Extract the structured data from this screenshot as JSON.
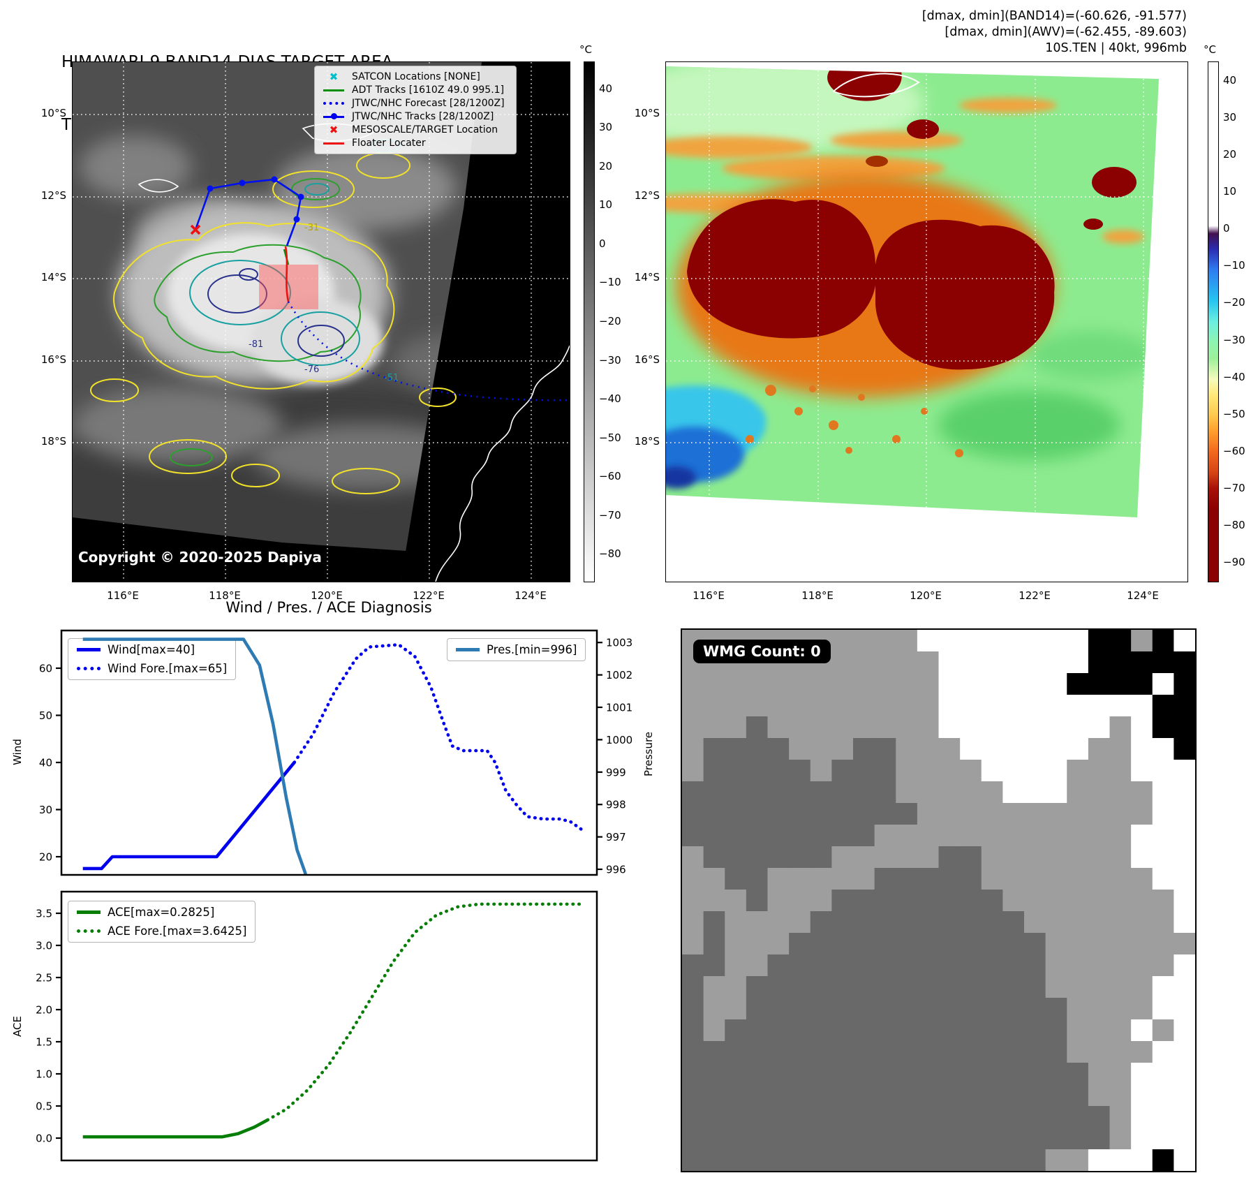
{
  "panel_band14": {
    "title": "HIMAWARI-9 BAND14-DIAS TARGET AREA",
    "time_label": "Time: 2025/12/28 17:30:00Z",
    "copyright": "Copyright © 2020-2025 Dapiya",
    "legend": [
      {
        "label": "SATCON Locations [NONE]",
        "marker": "x",
        "color": "#00bfca"
      },
      {
        "label": "ADT Tracks [1610Z 49.0 995.1]",
        "marker": "line",
        "color": "#0a8f0a"
      },
      {
        "label": "JTWC/NHC Forecast [28/1200Z]",
        "marker": "dotted",
        "color": "#0000ee"
      },
      {
        "label": "JTWC/NHC Tracks [28/1200Z]",
        "marker": "linedot",
        "color": "#0000ee"
      },
      {
        "label": "MESOSCALE/TARGET Location",
        "marker": "x",
        "color": "#ee1111"
      },
      {
        "label": "Floater Locater",
        "marker": "line",
        "color": "#ee1111"
      }
    ],
    "x_ticks": [
      "116°E",
      "118°E",
      "120°E",
      "122°E",
      "124°E"
    ],
    "y_ticks": [
      "10°S",
      "12°S",
      "14°S",
      "16°S",
      "18°S"
    ],
    "colorbar": {
      "unit": "°C",
      "ticks": [
        {
          "v": 40,
          "t": "40"
        },
        {
          "v": 30,
          "t": "30"
        },
        {
          "v": 20,
          "t": "20"
        },
        {
          "v": 10,
          "t": "10"
        },
        {
          "v": 0,
          "t": "0"
        },
        {
          "v": -10,
          "t": "−10"
        },
        {
          "v": -20,
          "t": "−20"
        },
        {
          "v": -30,
          "t": "−30"
        },
        {
          "v": -40,
          "t": "−40"
        },
        {
          "v": -50,
          "t": "−50"
        },
        {
          "v": -60,
          "t": "−60"
        },
        {
          "v": -70,
          "t": "−70"
        },
        {
          "v": -80,
          "t": "−80"
        }
      ]
    },
    "contour_labels": {
      "c42": "42",
      "c31": "-31",
      "c81": "-81",
      "c76": "-76",
      "c51": "-51"
    }
  },
  "panel_awv": {
    "info_line1": "[dmax, dmin](BAND14)=(-60.626, -91.577)",
    "info_line2": "[dmax, dmin](AWV)=(-62.455, -89.603)",
    "info_line3": "10S.TEN | 40kt, 996mb",
    "x_ticks": [
      "116°E",
      "118°E",
      "120°E",
      "122°E",
      "124°E"
    ],
    "y_ticks": [
      "10°S",
      "12°S",
      "14°S",
      "16°S",
      "18°S"
    ],
    "colorbar": {
      "unit": "°C",
      "ticks": [
        {
          "v": 40,
          "t": "40"
        },
        {
          "v": 30,
          "t": "30"
        },
        {
          "v": 20,
          "t": "20"
        },
        {
          "v": 10,
          "t": "10"
        },
        {
          "v": 0,
          "t": "0"
        },
        {
          "v": -10,
          "t": "−10"
        },
        {
          "v": -20,
          "t": "−20"
        },
        {
          "v": -30,
          "t": "−30"
        },
        {
          "v": -40,
          "t": "−40"
        },
        {
          "v": -50,
          "t": "−50"
        },
        {
          "v": -60,
          "t": "−60"
        },
        {
          "v": -70,
          "t": "−70"
        },
        {
          "v": -80,
          "t": "−80"
        },
        {
          "v": -90,
          "t": "−90"
        }
      ]
    }
  },
  "diagnosis": {
    "title": "Wind / Pres. / ACE Diagnosis",
    "ylabel_wind": "Wind",
    "ylabel_pressure": "Pressure",
    "ylabel_ace": "ACE"
  },
  "chart_data": [
    {
      "type": "line",
      "title": "Wind / Pres. / ACE Diagnosis",
      "ylabel": "Wind",
      "y2label": "Pressure",
      "ylim": [
        16,
        68
      ],
      "y2lim": [
        995.8,
        1003.3
      ],
      "grid": false,
      "legend_position": "upper-left and upper-right",
      "y_ticks": [
        {
          "v": 20,
          "t": "20"
        },
        {
          "v": 30,
          "t": "30"
        },
        {
          "v": 40,
          "t": "40"
        },
        {
          "v": 50,
          "t": "50"
        },
        {
          "v": 60,
          "t": "60"
        }
      ],
      "y2_ticks": [
        {
          "v": 996,
          "t": "996"
        },
        {
          "v": 997,
          "t": "997"
        },
        {
          "v": 998,
          "t": "998"
        },
        {
          "v": 999,
          "t": "999"
        },
        {
          "v": 1000,
          "t": "1000"
        },
        {
          "v": 1001,
          "t": "1001"
        },
        {
          "v": 1002,
          "t": "1002"
        },
        {
          "v": 1003,
          "t": "1003"
        }
      ],
      "series": [
        {
          "name": "Wind[max=40]",
          "axis": "y",
          "style": "solid",
          "color": "#0000ee",
          "points": [
            [
              4,
              17.5
            ],
            [
              7.5,
              17.5
            ],
            [
              9.5,
              20
            ],
            [
              29,
              20
            ],
            [
              43.5,
              40
            ]
          ]
        },
        {
          "name": "Wind Fore.[max=65]",
          "axis": "y",
          "style": "dotted",
          "color": "#0000ee",
          "points": [
            [
              43.5,
              40
            ],
            [
              47,
              46
            ],
            [
              51,
              55
            ],
            [
              55,
              62
            ],
            [
              57.5,
              64.5
            ],
            [
              63,
              65
            ],
            [
              66,
              62.5
            ],
            [
              69,
              56
            ],
            [
              71.5,
              48
            ],
            [
              73,
              43.5
            ],
            [
              75,
              42.5
            ],
            [
              79.5,
              42.5
            ],
            [
              81,
              40
            ],
            [
              83,
              34
            ],
            [
              85,
              31
            ],
            [
              87,
              28.5
            ],
            [
              90,
              28
            ],
            [
              93,
              28
            ],
            [
              95,
              27.5
            ],
            [
              97.5,
              25.5
            ]
          ]
        },
        {
          "name": "Pres.[min=996]",
          "axis": "y2",
          "style": "solid",
          "color": "#2e7bb4",
          "points": [
            [
              4,
              1003.1
            ],
            [
              34,
              1003.1
            ],
            [
              37,
              1002.3
            ],
            [
              39.5,
              1000.5
            ],
            [
              42,
              998.2
            ],
            [
              44,
              996.6
            ],
            [
              45.5,
              995.9
            ],
            [
              46.5,
              995.2
            ]
          ]
        }
      ]
    },
    {
      "type": "line",
      "ylabel": "ACE",
      "ylim": [
        -0.15,
        3.8
      ],
      "grid": false,
      "legend_position": "upper-left",
      "y_ticks": [
        {
          "v": 0,
          "t": "0.0"
        },
        {
          "v": 0.5,
          "t": "0.5"
        },
        {
          "v": 1,
          "t": "1.0"
        },
        {
          "v": 1.5,
          "t": "1.5"
        },
        {
          "v": 2,
          "t": "2.0"
        },
        {
          "v": 2.5,
          "t": "2.5"
        },
        {
          "v": 3,
          "t": "3.0"
        },
        {
          "v": 3.5,
          "t": "3.5"
        }
      ],
      "series": [
        {
          "name": "ACE[max=0.2825]",
          "axis": "y",
          "style": "solid",
          "color": "#067d06",
          "points": [
            [
              4,
              0.02
            ],
            [
              30,
              0.02
            ],
            [
              33,
              0.07
            ],
            [
              36,
              0.17
            ],
            [
              38.5,
              0.2825
            ]
          ]
        },
        {
          "name": "ACE Fore.[max=3.6425]",
          "axis": "y",
          "style": "dotted",
          "color": "#067d06",
          "points": [
            [
              38.5,
              0.2825
            ],
            [
              42,
              0.45
            ],
            [
              46,
              0.75
            ],
            [
              50,
              1.15
            ],
            [
              54,
              1.65
            ],
            [
              58,
              2.2
            ],
            [
              62,
              2.75
            ],
            [
              66,
              3.2
            ],
            [
              70,
              3.47
            ],
            [
              74,
              3.6
            ],
            [
              78,
              3.6425
            ],
            [
              97,
              3.6425
            ]
          ]
        }
      ]
    }
  ],
  "panel_wmg": {
    "count_label": "WMG Count: 0",
    "cell_colors": {
      "L": "#9e9e9e",
      "D": "#696969",
      "W": "#ffffff",
      "B": "#000000"
    },
    "grid_rows": [
      "LLLLLLLLLLLWWWWWWWWBBLBW",
      "LLLLLLLLLLLLWWWWWWWBBBBB",
      "LLLLLLLLLLLLWWWWWWBBBBWB",
      "LLLLLLLLLLLLWWWWWWWWWWBB",
      "LLLDLLLLLLLLWWWWWWWWLWBB",
      "LDDDDLLLDDLLLWWWWWWLLWWB",
      "LDDDDDLDDDLLLLWWWWLLLWWW",
      "DDDDDDDDDDLLLLLWWWLLLLWW",
      "DDDDDDDDDDDLLLLLLLLLLLWW",
      "DDDDDDDDDLLLLLLLLLLLLWWW",
      "LDDDDDDLLLLLDDLLLLLLLWWW",
      "LLDDLLLLLDDDDDLLLLLLLLWW",
      "LLLDLLLDDDDDDDDLLLLLLLLW",
      "LDLLLLDDDDDDDDDDLLLLLLLW",
      "LDLLLDDDDDDDDDDDDLLLLLLL",
      "DDLLDDDDDDDDDDDDDLLLLLLW",
      "DLLDDDDDDDDDDDDDDLLLLLWW",
      "DLLDDDDDDDDDDDDDDDLLLLWW",
      "DLDDDDDDDDDDDDDDDDLLLWLW",
      "DDDDDDDDDDDDDDDDDDLLLLWW",
      "DDDDDDDDDDDDDDDDDDDLLWWW",
      "DDDDDDDDDDDDDDDDDDDLLWWW",
      "DDDDDDDDDDDDDDDDDDDDLWWW",
      "DDDDDDDDDDDDDDDDDDDDLWWW",
      "DDDDDDDDDDDDDDDDDLLWWWBW"
    ]
  }
}
